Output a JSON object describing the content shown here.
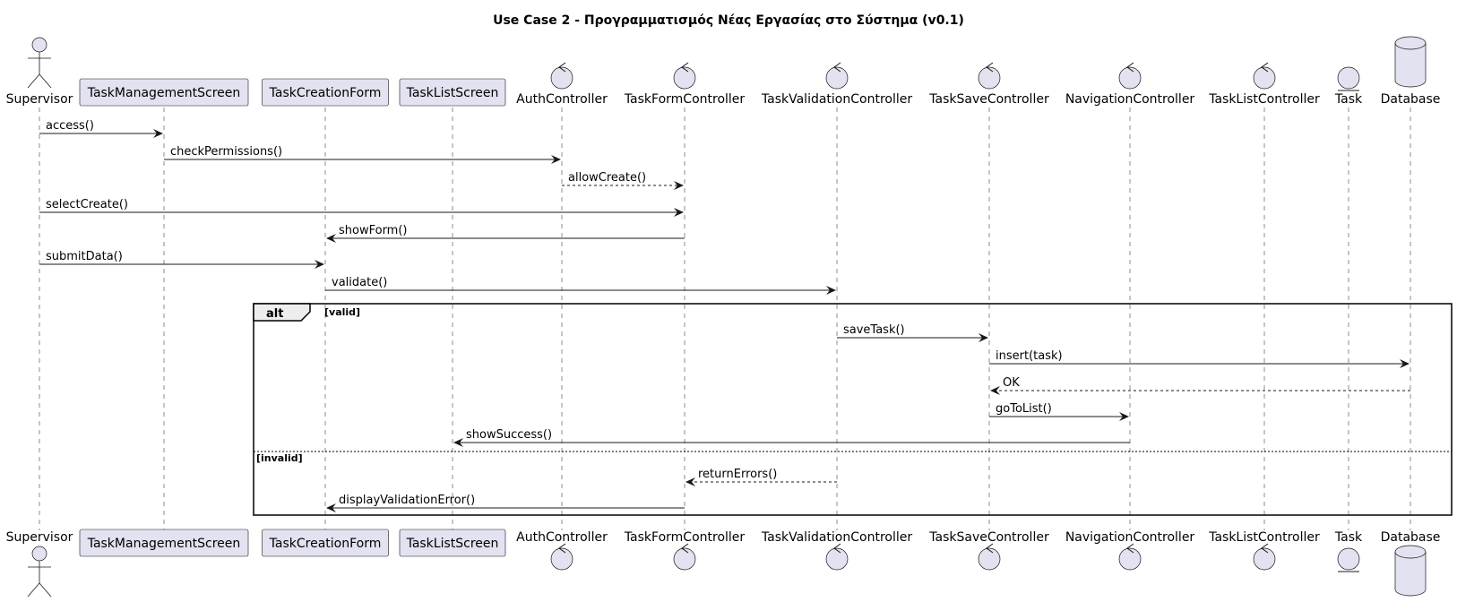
{
  "title": "Use Case 2 - Προγραμματισμός Νέας Εργασίας στο Σύστημα (v0.1)",
  "participants": [
    {
      "id": "supervisor",
      "label": "Supervisor",
      "kind": "actor"
    },
    {
      "id": "taskmanagementscreen",
      "label": "TaskManagementScreen",
      "kind": "participant"
    },
    {
      "id": "taskcreationform",
      "label": "TaskCreationForm",
      "kind": "participant"
    },
    {
      "id": "tasklistscreen",
      "label": "TaskListScreen",
      "kind": "participant"
    },
    {
      "id": "authcontroller",
      "label": "AuthController",
      "kind": "control"
    },
    {
      "id": "taskformcontroller",
      "label": "TaskFormController",
      "kind": "control"
    },
    {
      "id": "taskvalidationcontroller",
      "label": "TaskValidationController",
      "kind": "control"
    },
    {
      "id": "tasksavecontroller",
      "label": "TaskSaveController",
      "kind": "control"
    },
    {
      "id": "navigationcontroller",
      "label": "NavigationController",
      "kind": "control"
    },
    {
      "id": "tasklistcontroller",
      "label": "TaskListController",
      "kind": "control"
    },
    {
      "id": "task",
      "label": "Task",
      "kind": "entity"
    },
    {
      "id": "database",
      "label": "Database",
      "kind": "database"
    }
  ],
  "messages": [
    {
      "from": "supervisor",
      "to": "taskmanagementscreen",
      "label": "access()",
      "style": "solid"
    },
    {
      "from": "taskmanagementscreen",
      "to": "authcontroller",
      "label": "checkPermissions()",
      "style": "solid"
    },
    {
      "from": "authcontroller",
      "to": "taskformcontroller",
      "label": "allowCreate()",
      "style": "dashed"
    },
    {
      "from": "supervisor",
      "to": "taskformcontroller",
      "label": "selectCreate()",
      "style": "solid"
    },
    {
      "from": "taskformcontroller",
      "to": "taskcreationform",
      "label": "showForm()",
      "style": "solid"
    },
    {
      "from": "supervisor",
      "to": "taskcreationform",
      "label": "submitData()",
      "style": "solid"
    },
    {
      "from": "taskcreationform",
      "to": "taskvalidationcontroller",
      "label": "validate()",
      "style": "solid"
    },
    {
      "from": "taskvalidationcontroller",
      "to": "tasksavecontroller",
      "label": "saveTask()",
      "style": "solid"
    },
    {
      "from": "tasksavecontroller",
      "to": "database",
      "label": "insert(task)",
      "style": "solid"
    },
    {
      "from": "database",
      "to": "tasksavecontroller",
      "label": "OK",
      "style": "dashed"
    },
    {
      "from": "tasksavecontroller",
      "to": "navigationcontroller",
      "label": "goToList()",
      "style": "solid"
    },
    {
      "from": "navigationcontroller",
      "to": "tasklistscreen",
      "label": "showSuccess()",
      "style": "solid"
    },
    {
      "from": "taskvalidationcontroller",
      "to": "taskformcontroller",
      "label": "returnErrors()",
      "style": "dashed"
    },
    {
      "from": "taskformcontroller",
      "to": "taskcreationform",
      "label": "displayValidationError()",
      "style": "solid"
    }
  ],
  "fragment": {
    "operator": "alt",
    "guards": [
      "[valid]",
      "[invalid]"
    ]
  }
}
